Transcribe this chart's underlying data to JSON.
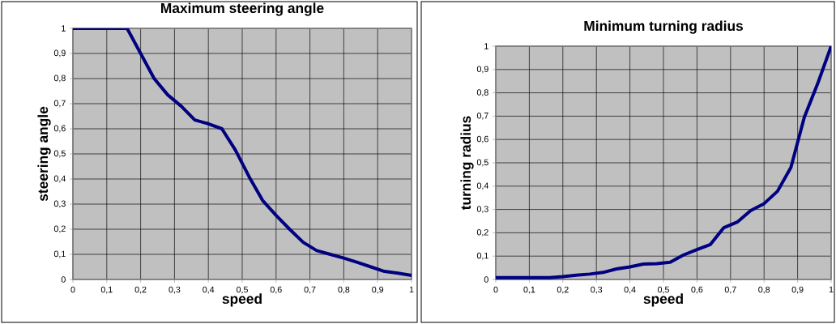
{
  "chart_data": [
    {
      "type": "line",
      "title": "Maximum steering angle",
      "xlabel": "speed",
      "ylabel": "steering angle",
      "x": [
        0,
        0.04,
        0.08,
        0.12,
        0.16,
        0.2,
        0.24,
        0.28,
        0.32,
        0.36,
        0.4,
        0.44,
        0.48,
        0.52,
        0.56,
        0.6,
        0.64,
        0.68,
        0.72,
        0.76,
        0.8,
        0.84,
        0.88,
        0.92,
        0.96,
        1
      ],
      "series": [
        {
          "color": "#000080",
          "values": [
            1,
            1,
            1,
            1,
            1,
            0.9,
            0.8,
            0.735,
            0.69,
            0.635,
            0.62,
            0.6,
            0.515,
            0.41,
            0.315,
            0.255,
            0.2,
            0.148,
            0.115,
            0.1,
            0.085,
            0.068,
            0.05,
            0.032,
            0.025,
            0.016
          ]
        }
      ],
      "xlim": [
        0,
        1
      ],
      "ylim": [
        0,
        1
      ],
      "xticks": [
        0,
        {
          "value": 0.1,
          "label": "0,1"
        },
        {
          "value": 0.2,
          "label": "0,2"
        },
        {
          "value": 0.3,
          "label": "0,3"
        },
        {
          "value": 0.4,
          "label": "0,4"
        },
        {
          "value": 0.5,
          "label": "0,5"
        },
        {
          "value": 0.6,
          "label": "0,6"
        },
        {
          "value": 0.7,
          "label": "0,7"
        },
        {
          "value": 0.8,
          "label": "0,8"
        },
        {
          "value": 0.9,
          "label": "0,9"
        },
        1
      ],
      "yticks": [
        0,
        {
          "value": 0.1,
          "label": "0,1"
        },
        {
          "value": 0.2,
          "label": "0,2"
        },
        {
          "value": 0.3,
          "label": "0,3"
        },
        {
          "value": 0.4,
          "label": "0,4"
        },
        {
          "value": 0.5,
          "label": "0,5"
        },
        {
          "value": 0.6,
          "label": "0,6"
        },
        {
          "value": 0.7,
          "label": "0,7"
        },
        {
          "value": 0.8,
          "label": "0,8"
        },
        {
          "value": 0.9,
          "label": "0,9"
        },
        1
      ],
      "grid": true,
      "legend": false,
      "marker": "none",
      "line_style": "solid"
    },
    {
      "type": "line",
      "title": "Minimum turning radius",
      "xlabel": "speed",
      "ylabel": "turning radius",
      "x": [
        0,
        0.04,
        0.08,
        0.12,
        0.16,
        0.2,
        0.24,
        0.28,
        0.32,
        0.36,
        0.4,
        0.44,
        0.48,
        0.52,
        0.56,
        0.6,
        0.64,
        0.68,
        0.72,
        0.76,
        0.8,
        0.84,
        0.88,
        0.92,
        0.96,
        1
      ],
      "series": [
        {
          "color": "#000080",
          "values": [
            0.008,
            0.008,
            0.008,
            0.008,
            0.008,
            0.012,
            0.018,
            0.023,
            0.03,
            0.045,
            0.054,
            0.066,
            0.068,
            0.074,
            0.105,
            0.128,
            0.15,
            0.222,
            0.246,
            0.295,
            0.325,
            0.378,
            0.48,
            0.695,
            0.84,
            1
          ]
        }
      ],
      "xlim": [
        0,
        1
      ],
      "ylim": [
        0,
        1
      ],
      "xticks": [
        0,
        {
          "value": 0.1,
          "label": "0,1"
        },
        {
          "value": 0.2,
          "label": "0,2"
        },
        {
          "value": 0.3,
          "label": "0,3"
        },
        {
          "value": 0.4,
          "label": "0,4"
        },
        {
          "value": 0.5,
          "label": "0,5"
        },
        {
          "value": 0.6,
          "label": "0,6"
        },
        {
          "value": 0.7,
          "label": "0,7"
        },
        {
          "value": 0.8,
          "label": "0,8"
        },
        {
          "value": 0.9,
          "label": "0,9"
        },
        1
      ],
      "yticks": [
        0,
        {
          "value": 0.1,
          "label": "0,1"
        },
        {
          "value": 0.2,
          "label": "0,2"
        },
        {
          "value": 0.3,
          "label": "0,3"
        },
        {
          "value": 0.4,
          "label": "0,4"
        },
        {
          "value": 0.5,
          "label": "0,5"
        },
        {
          "value": 0.6,
          "label": "0,6"
        },
        {
          "value": 0.7,
          "label": "0,7"
        },
        {
          "value": 0.8,
          "label": "0,8"
        },
        {
          "value": 0.9,
          "label": "0,9"
        },
        1
      ],
      "grid": true,
      "legend": false,
      "marker": "none",
      "line_style": "solid"
    }
  ]
}
